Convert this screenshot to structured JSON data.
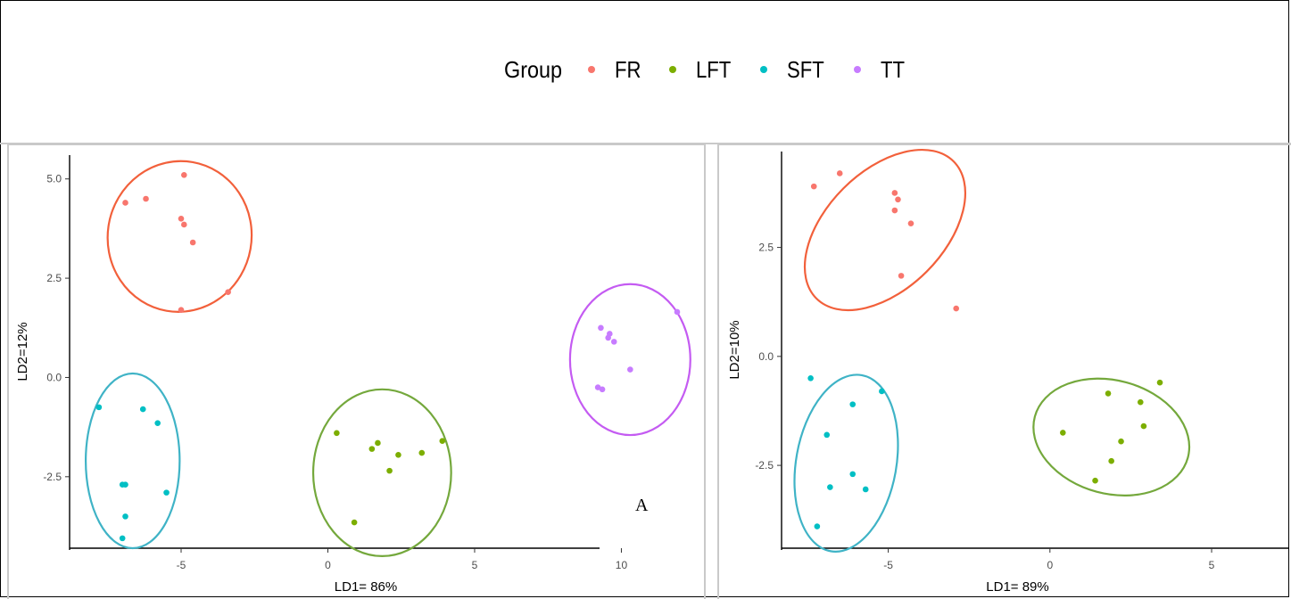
{
  "legend": {
    "title": "Group",
    "items": [
      {
        "label": "FR",
        "color": "#F8766D"
      },
      {
        "label": "LFT",
        "color": "#7CAE00"
      },
      {
        "label": "SFT",
        "color": "#00BFC4"
      },
      {
        "label": "TT",
        "color": "#C77CFF"
      }
    ]
  },
  "ellipse_colors": {
    "FR": "#F2603B",
    "LFT": "#74A83C",
    "SFT": "#3FB3C6",
    "TT": "#C45BF2"
  },
  "chart_data": [
    {
      "type": "scatter",
      "panel_label": "A",
      "xlabel": "LD1= 86%",
      "ylabel": "LD2=12%",
      "xlim": [
        -8.8,
        12.6
      ],
      "ylim": [
        -4.3,
        5.6
      ],
      "xticks": [
        -5,
        0,
        5,
        10
      ],
      "yticks": [
        5.0,
        2.5,
        0.0,
        -2.5
      ],
      "xtick_labels": [
        "-5",
        "0",
        "5",
        "10"
      ],
      "ytick_labels": [
        "5.0",
        "2.5",
        "0.0",
        "-2.5"
      ],
      "series": [
        {
          "name": "FR",
          "points": [
            [
              -4.9,
              5.1
            ],
            [
              -6.2,
              4.5
            ],
            [
              -6.9,
              4.4
            ],
            [
              -5.0,
              4.0
            ],
            [
              -4.9,
              3.85
            ],
            [
              -4.6,
              3.4
            ],
            [
              -3.4,
              2.15
            ],
            [
              -5.0,
              1.7
            ]
          ],
          "ellipse": {
            "cx": -5.05,
            "cy": 3.55,
            "rx": 2.45,
            "ry": 1.9,
            "angle": 10
          }
        },
        {
          "name": "LFT",
          "points": [
            [
              0.3,
              -1.4
            ],
            [
              1.5,
              -1.8
            ],
            [
              1.7,
              -1.65
            ],
            [
              2.4,
              -1.95
            ],
            [
              3.2,
              -1.9
            ],
            [
              3.9,
              -1.6
            ],
            [
              2.1,
              -2.35
            ],
            [
              0.9,
              -3.65
            ]
          ],
          "ellipse": {
            "cx": 1.85,
            "cy": -2.4,
            "rx": 2.35,
            "ry": 2.1,
            "angle": 0
          }
        },
        {
          "name": "SFT",
          "points": [
            [
              -7.8,
              -0.75
            ],
            [
              -6.3,
              -0.8
            ],
            [
              -5.8,
              -1.15
            ],
            [
              -6.9,
              -2.7
            ],
            [
              -7.0,
              -2.7
            ],
            [
              -5.5,
              -2.9
            ],
            [
              -6.9,
              -3.5
            ],
            [
              -7.0,
              -4.05
            ]
          ],
          "ellipse": {
            "cx": -6.65,
            "cy": -2.1,
            "rx": 1.6,
            "ry": 2.2,
            "angle": 0
          }
        },
        {
          "name": "TT",
          "points": [
            [
              9.3,
              1.25
            ],
            [
              9.6,
              1.1
            ],
            [
              9.55,
              1.0
            ],
            [
              9.75,
              0.9
            ],
            [
              11.9,
              1.65
            ],
            [
              10.3,
              0.2
            ],
            [
              9.2,
              -0.25
            ],
            [
              9.35,
              -0.3
            ]
          ],
          "ellipse": {
            "cx": 10.3,
            "cy": 0.45,
            "rx": 2.05,
            "ry": 1.9,
            "angle": 0
          }
        }
      ]
    },
    {
      "type": "scatter",
      "panel_label": "",
      "xlabel": "LD1= 89%",
      "ylabel": "LD2=10%",
      "xlim": [
        -8.3,
        7.4
      ],
      "ylim": [
        -4.4,
        4.7
      ],
      "xticks": [
        -5,
        0,
        5
      ],
      "yticks": [
        2.5,
        0.0,
        -2.5
      ],
      "xtick_labels": [
        "-5",
        "0",
        "5"
      ],
      "ytick_labels": [
        "2.5",
        "0.0",
        "-2.5"
      ],
      "series": [
        {
          "name": "FR",
          "points": [
            [
              -6.5,
              4.2
            ],
            [
              -7.3,
              3.9
            ],
            [
              -4.8,
              3.75
            ],
            [
              -4.7,
              3.6
            ],
            [
              -4.8,
              3.35
            ],
            [
              -4.3,
              3.05
            ],
            [
              -4.6,
              1.85
            ],
            [
              -2.9,
              1.1
            ]
          ],
          "ellipse": {
            "cx": -5.1,
            "cy": 2.9,
            "rx": 3.0,
            "ry": 1.35,
            "angle": -45
          }
        },
        {
          "name": "LFT",
          "points": [
            [
              1.8,
              -0.85
            ],
            [
              3.4,
              -0.6
            ],
            [
              2.8,
              -1.05
            ],
            [
              2.9,
              -1.6
            ],
            [
              0.4,
              -1.75
            ],
            [
              2.2,
              -1.95
            ],
            [
              1.9,
              -2.4
            ],
            [
              1.4,
              -2.85
            ]
          ],
          "ellipse": {
            "cx": 1.9,
            "cy": -1.85,
            "rx": 2.45,
            "ry": 1.3,
            "angle": 15
          }
        },
        {
          "name": "SFT",
          "points": [
            [
              -7.4,
              -0.5
            ],
            [
              -5.2,
              -0.8
            ],
            [
              -6.1,
              -1.1
            ],
            [
              -6.9,
              -1.8
            ],
            [
              -6.1,
              -2.7
            ],
            [
              -6.8,
              -3.0
            ],
            [
              -5.7,
              -3.05
            ],
            [
              -7.2,
              -3.9
            ]
          ],
          "ellipse": {
            "cx": -6.3,
            "cy": -2.45,
            "rx": 1.55,
            "ry": 2.05,
            "angle": 10
          }
        }
      ]
    }
  ]
}
